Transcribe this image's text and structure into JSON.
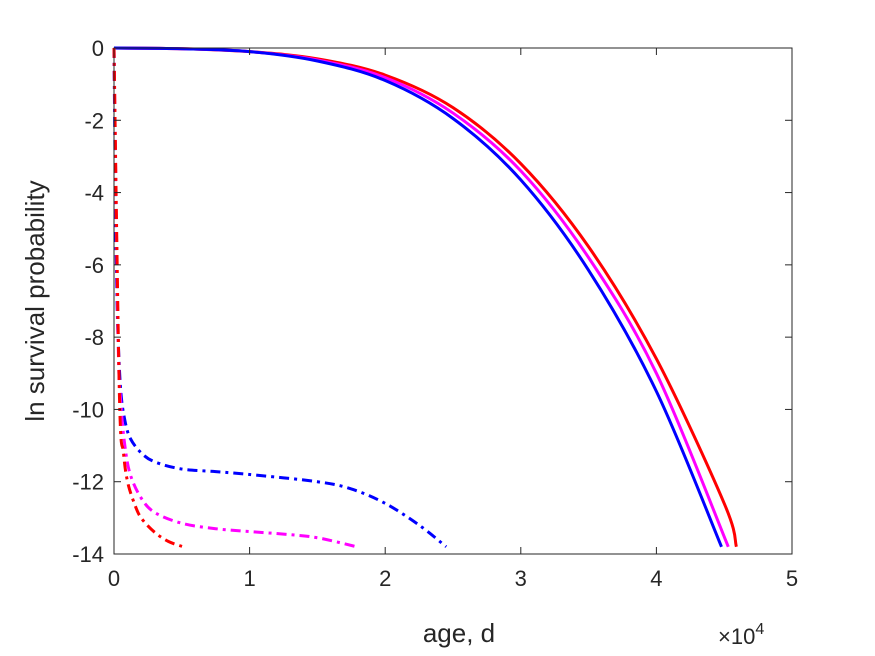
{
  "chart_data": {
    "type": "line",
    "xlabel": "age, d",
    "ylabel": "ln survival probability",
    "x_exponent_label": "×10",
    "x_exponent_power": "4",
    "xlim": [
      0,
      50000
    ],
    "ylim": [
      -14,
      0
    ],
    "xticks": [
      0,
      10000,
      20000,
      30000,
      40000,
      50000
    ],
    "xtick_labels": [
      "0",
      "1",
      "2",
      "3",
      "4",
      "5"
    ],
    "yticks": [
      0,
      -2,
      -4,
      -6,
      -8,
      -10,
      -12,
      -14
    ],
    "ytick_labels": [
      "0",
      "-2",
      "-4",
      "-6",
      "-8",
      "-10",
      "-12",
      "-14"
    ],
    "grid": false,
    "legend": "none",
    "series": [
      {
        "color": "#ff0000",
        "style": "solid",
        "x": [
          0,
          5000,
          10000,
          15000,
          20000,
          25000,
          30000,
          35000,
          40000,
          45000,
          45900
        ],
        "y": [
          0,
          -0.02,
          -0.1,
          -0.3,
          -0.75,
          -1.65,
          -3.2,
          -5.5,
          -8.6,
          -12.6,
          -13.8
        ]
      },
      {
        "color": "#ff00ff",
        "style": "solid",
        "x": [
          0,
          5000,
          10000,
          15000,
          20000,
          25000,
          30000,
          35000,
          40000,
          45300
        ],
        "y": [
          0,
          -0.02,
          -0.1,
          -0.33,
          -0.82,
          -1.8,
          -3.4,
          -5.8,
          -9.0,
          -13.8
        ]
      },
      {
        "color": "#0000ff",
        "style": "solid",
        "x": [
          0,
          5000,
          10000,
          15000,
          20000,
          25000,
          30000,
          35000,
          40000,
          44800
        ],
        "y": [
          0,
          -0.02,
          -0.1,
          -0.36,
          -0.9,
          -1.95,
          -3.65,
          -6.15,
          -9.5,
          -13.8
        ]
      },
      {
        "color": "#0000ff",
        "style": "dashdot",
        "x": [
          0,
          100,
          200,
          300,
          500,
          800,
          1200,
          2000,
          3000,
          5000,
          7500,
          10000,
          15000,
          17500,
          20000,
          22500,
          24500
        ],
        "y": [
          0,
          -4,
          -6.5,
          -8.0,
          -9.5,
          -10.3,
          -10.8,
          -11.2,
          -11.45,
          -11.65,
          -11.72,
          -11.8,
          -12.0,
          -12.2,
          -12.6,
          -13.2,
          -13.8
        ]
      },
      {
        "color": "#ff00ff",
        "style": "dashdot",
        "x": [
          0,
          300,
          500,
          800,
          1200,
          2000,
          3000,
          5000,
          7500,
          10000,
          12500,
          15000,
          17900
        ],
        "y": [
          0,
          -8.0,
          -9.8,
          -11.0,
          -11.8,
          -12.45,
          -12.85,
          -13.15,
          -13.3,
          -13.38,
          -13.45,
          -13.55,
          -13.8
        ]
      },
      {
        "color": "#ff0000",
        "style": "dashdot",
        "x": [
          0,
          400,
          700,
          1000,
          1500,
          2000,
          3000,
          4000,
          5100
        ],
        "y": [
          0,
          -9.6,
          -11.2,
          -12.0,
          -12.6,
          -13.0,
          -13.4,
          -13.65,
          -13.8
        ]
      }
    ]
  }
}
